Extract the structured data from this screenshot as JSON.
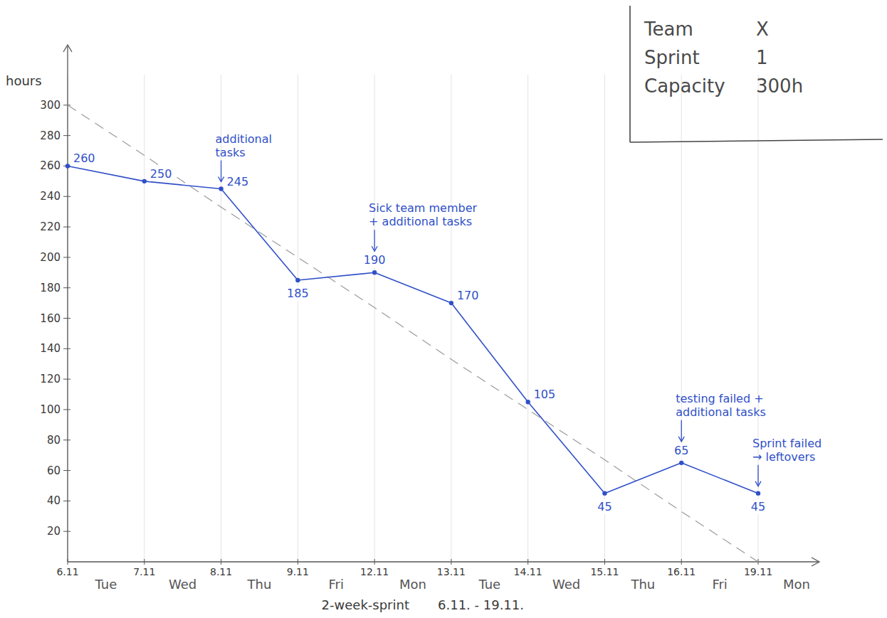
{
  "chart_data": {
    "type": "line",
    "y_label": "hours",
    "caption": "2-week-sprint",
    "period": "6.11. - 19.11.",
    "categories": [
      "6.11",
      "7.11",
      "8.11",
      "9.11",
      "12.11",
      "13.11",
      "14.11",
      "15.11",
      "16.11",
      "19.11"
    ],
    "weekdays": [
      "Tue",
      "Wed",
      "Thu",
      "Fri",
      "Mon",
      "Tue",
      "Wed",
      "Thu",
      "Fri",
      "Mon"
    ],
    "series": [
      {
        "values": [
          260,
          250,
          245,
          185,
          190,
          170,
          105,
          45,
          65,
          45
        ],
        "color": "#3050c8",
        "marker": "circle",
        "line_style": "solid",
        "data_labels": true
      },
      {
        "values": [
          300,
          267,
          233,
          200,
          167,
          133,
          100,
          67,
          33,
          0
        ],
        "color": "#9a9a9a",
        "marker": "none",
        "line_style": "dashed"
      }
    ],
    "ylim": [
      0,
      320
    ],
    "yticks": [
      20,
      40,
      60,
      80,
      100,
      120,
      140,
      160,
      180,
      200,
      220,
      240,
      260,
      280,
      300
    ],
    "grid": true,
    "annotations": [
      {
        "category": "8.11",
        "text": [
          "additional",
          "tasks"
        ]
      },
      {
        "category": "12.11",
        "text": [
          "Sick team member",
          "+ additional tasks"
        ]
      },
      {
        "category": "16.11",
        "text": [
          "testing failed +",
          "additional tasks"
        ]
      },
      {
        "category": "19.11",
        "text": [
          "Sprint failed",
          "→ leftovers"
        ]
      }
    ],
    "info": [
      {
        "label": "Team",
        "value": "X"
      },
      {
        "label": "Sprint",
        "value": "1"
      },
      {
        "label": "Capacity",
        "value": "300h"
      }
    ]
  }
}
